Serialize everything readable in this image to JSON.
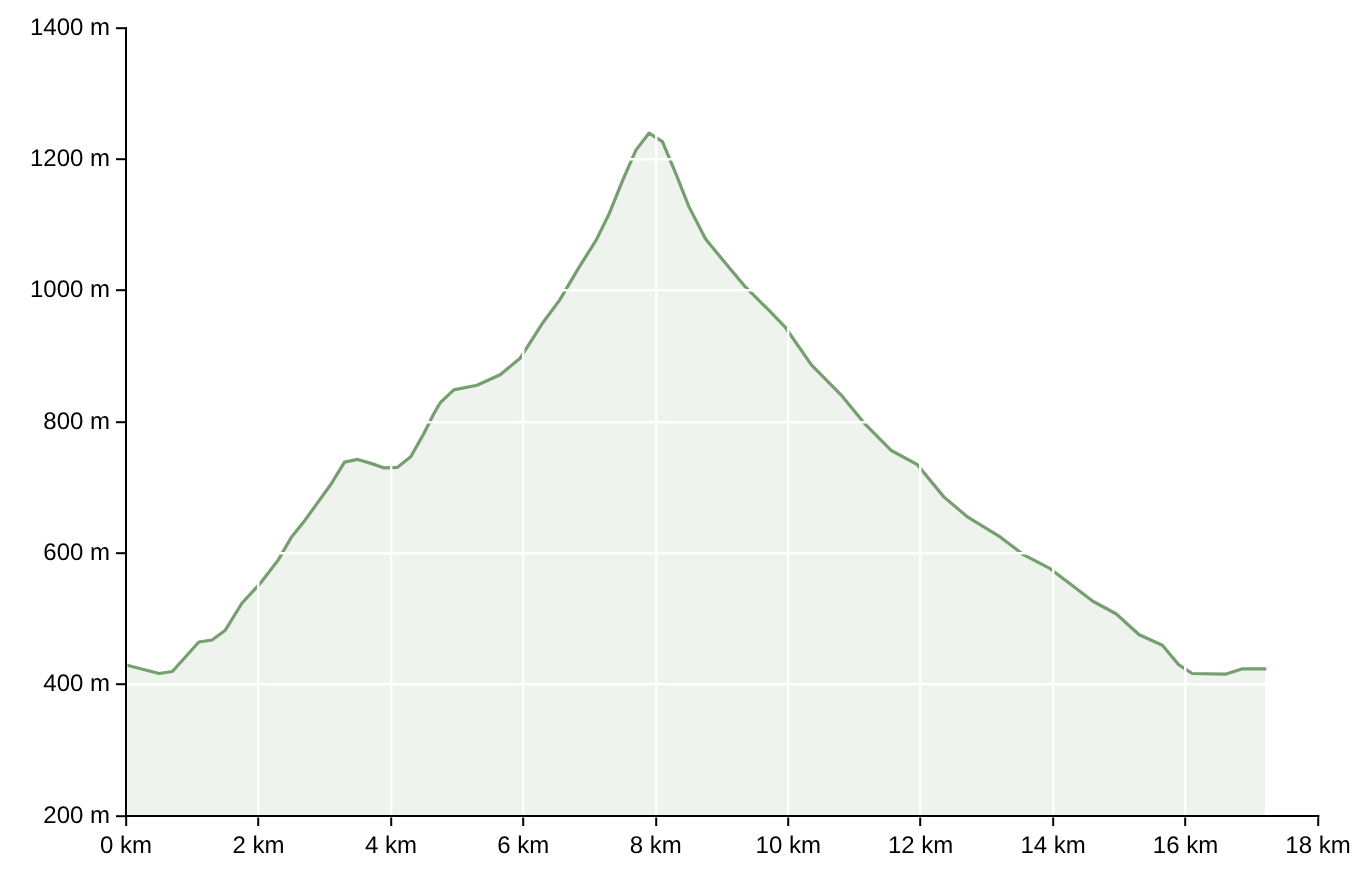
{
  "chart_data": {
    "type": "area",
    "x": [
      0,
      0.5,
      0.7,
      1.1,
      1.3,
      1.5,
      1.75,
      2.05,
      2.3,
      2.5,
      2.7,
      3.1,
      3.3,
      3.5,
      3.7,
      3.9,
      4.1,
      4.3,
      4.5,
      4.65,
      4.75,
      4.95,
      5.3,
      5.65,
      5.95,
      6.3,
      6.55,
      6.85,
      7.1,
      7.3,
      7.5,
      7.7,
      7.9,
      8.1,
      8.3,
      8.5,
      8.75,
      9.05,
      9.35,
      9.7,
      9.95,
      10.35,
      10.8,
      11.15,
      11.55,
      11.95,
      12.35,
      12.7,
      13.2,
      13.55,
      13.95,
      14.25,
      14.6,
      14.95,
      15.3,
      15.65,
      15.9,
      16.1,
      16.6,
      16.85,
      17.2
    ],
    "series": [
      {
        "color": "#769f6f",
        "values": [
          430,
          417,
          420,
          465,
          468,
          483,
          524,
          557,
          590,
          625,
          650,
          706,
          739,
          743,
          737,
          730,
          731,
          747,
          783,
          813,
          830,
          849,
          856,
          872,
          897,
          952,
          986,
          1037,
          1077,
          1118,
          1168,
          1214,
          1240,
          1227,
          1179,
          1128,
          1079,
          1042,
          1006,
          971,
          945,
          887,
          841,
          798,
          757,
          735,
          686,
          656,
          625,
          598,
          577,
          554,
          527,
          508,
          476,
          460,
          430,
          417,
          416,
          424,
          424
        ]
      }
    ],
    "xlim": [
      0,
      18
    ],
    "xticks": [
      {
        "value": 0,
        "label": "0 km"
      },
      {
        "value": 2,
        "label": "2 km"
      },
      {
        "value": 4,
        "label": "4 km"
      },
      {
        "value": 6,
        "label": "6 km"
      },
      {
        "value": 8,
        "label": "8 km"
      },
      {
        "value": 10,
        "label": "10 km"
      },
      {
        "value": 12,
        "label": "12 km"
      },
      {
        "value": 14,
        "label": "14 km"
      },
      {
        "value": 16,
        "label": "16 km"
      },
      {
        "value": 18,
        "label": "18 km"
      }
    ],
    "ylim": [
      200,
      1400
    ],
    "yticks": [
      {
        "value": 200,
        "label": "200 m"
      },
      {
        "value": 400,
        "label": "400 m"
      },
      {
        "value": 600,
        "label": "600 m"
      },
      {
        "value": 800,
        "label": "800 m"
      },
      {
        "value": 1000,
        "label": "1000 m"
      },
      {
        "value": 1200,
        "label": "1200 m"
      },
      {
        "value": 1400,
        "label": "1400 m"
      }
    ],
    "grid": true
  }
}
